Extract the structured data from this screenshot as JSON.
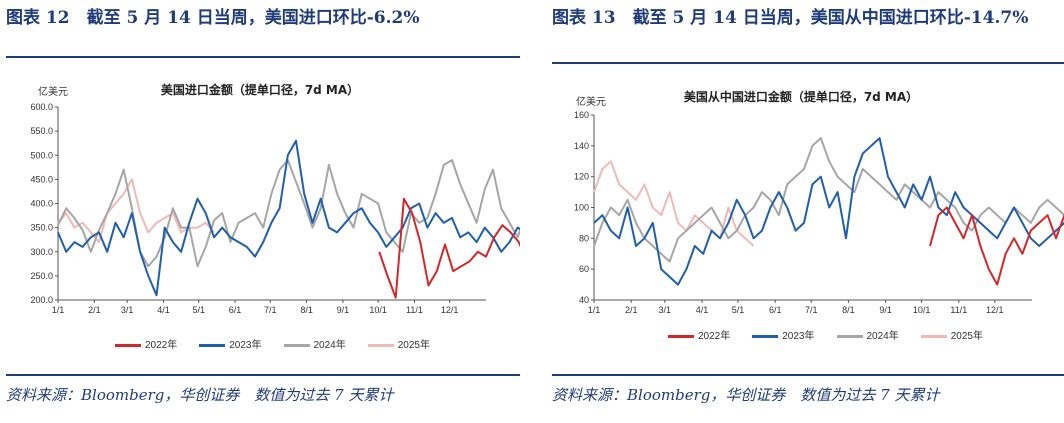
{
  "panels": [
    {
      "figure_title": "图表 12　截至 5 月 14 日当周，美国进口环比-6.2%",
      "source": "资料来源：Bloomberg，华创证券　数值为过去 7 天累计",
      "chart_data": {
        "type": "line",
        "title": "美国进口金额（提单口径，7d MA）",
        "ylabel": "亿美元",
        "ylim": [
          200,
          600
        ],
        "y_ticks": [
          "200.0",
          "250.0",
          "300.0",
          "350.0",
          "400.0",
          "450.0",
          "500.0",
          "550.0",
          "600.0"
        ],
        "x_ticks": [
          "1/1",
          "2/1",
          "3/1",
          "4/1",
          "5/1",
          "6/1",
          "7/1",
          "8/1",
          "9/1",
          "10/1",
          "11/1",
          "12/1"
        ],
        "grid": false,
        "legend_position": "bottom",
        "series": [
          {
            "name": "2022年",
            "color": "#d62728",
            "start_day": 274,
            "step": 7,
            "values": [
              300,
              250,
              205,
              410,
              380,
              320,
              230,
              260,
              315,
              260,
              270,
              280,
              300,
              290,
              330,
              355,
              340,
              320,
              280,
              260,
              300,
              240,
              260,
              300,
              290,
              250,
              300,
              235,
              300
            ]
          },
          {
            "name": "2023年",
            "color": "#1f5fae",
            "start_day": 0,
            "step": 7,
            "values": [
              340,
              300,
              320,
              310,
              330,
              340,
              300,
              360,
              330,
              380,
              300,
              250,
              210,
              350,
              320,
              300,
              360,
              410,
              380,
              330,
              350,
              330,
              320,
              310,
              290,
              320,
              360,
              390,
              500,
              530,
              420,
              360,
              410,
              350,
              340,
              360,
              380,
              390,
              360,
              340,
              310,
              330,
              350,
              390,
              400,
              350,
              380,
              360,
              370,
              330,
              340,
              320,
              350,
              330,
              300,
              320,
              350,
              340,
              310,
              330,
              360,
              350,
              330,
              350,
              370,
              340,
              350
            ]
          },
          {
            "name": "2024年",
            "color": "#a6a6a6",
            "start_day": 0,
            "step": 7,
            "values": [
              355,
              390,
              370,
              345,
              300,
              345,
              380,
              420,
              470,
              390,
              300,
              270,
              290,
              330,
              390,
              350,
              350,
              270,
              310,
              365,
              380,
              320,
              360,
              370,
              380,
              350,
              420,
              470,
              490,
              445,
              400,
              350,
              390,
              480,
              420,
              380,
              350,
              420,
              410,
              400,
              340,
              320,
              300,
              380,
              360,
              370,
              420,
              480,
              490,
              440,
              400,
              360,
              430,
              470,
              390,
              360,
              330,
              380,
              390,
              370,
              340,
              310,
              330,
              360,
              320,
              300,
              340
            ]
          },
          {
            "name": "2025年",
            "color": "#f2b8b8",
            "start_day": 0,
            "step": 7,
            "values": [
              360,
              380,
              350,
              360,
              340,
              320,
              380,
              400,
              420,
              450,
              380,
              340,
              360,
              370,
              380,
              340,
              350,
              350,
              360,
              340
            ]
          }
        ]
      }
    },
    {
      "figure_title": "图表 13　截至 5 月 14 日当周，美国从中国进口环比-14.7%",
      "source": "资料来源：Bloomberg，华创证券　数值为过去 7 天累计",
      "chart_data": {
        "type": "line",
        "title": "美国从中国进口金额（提单口径，7d MA）",
        "ylabel": "亿美元",
        "ylim": [
          40,
          160
        ],
        "y_ticks": [
          "40",
          "60",
          "80",
          "100",
          "120",
          "140",
          "160"
        ],
        "x_ticks": [
          "1/1",
          "2/1",
          "3/1",
          "4/1",
          "5/1",
          "6/1",
          "7/1",
          "8/1",
          "9/1",
          "10/1",
          "11/1",
          "12/1"
        ],
        "grid": false,
        "legend_position": "bottom",
        "series": [
          {
            "name": "2022年",
            "color": "#d62728",
            "start_day": 280,
            "step": 7,
            "values": [
              75,
              95,
              100,
              90,
              80,
              95,
              75,
              60,
              50,
              70,
              80,
              70,
              85,
              90,
              95,
              80,
              95,
              90,
              85,
              80,
              60,
              70,
              80
            ]
          },
          {
            "name": "2023年",
            "color": "#1f5fae",
            "start_day": 0,
            "step": 7,
            "values": [
              90,
              95,
              85,
              80,
              100,
              75,
              80,
              90,
              60,
              55,
              50,
              60,
              75,
              70,
              85,
              80,
              90,
              105,
              95,
              80,
              85,
              100,
              110,
              100,
              85,
              90,
              115,
              120,
              100,
              110,
              80,
              120,
              135,
              140,
              145,
              120,
              110,
              100,
              115,
              105,
              120,
              100,
              95,
              110,
              100,
              95,
              90,
              85,
              80,
              90,
              100,
              90,
              80,
              75,
              80,
              85,
              90,
              95,
              85,
              80,
              85,
              75,
              80,
              85,
              80,
              75,
              80
            ]
          },
          {
            "name": "2024年",
            "color": "#a6a6a6",
            "start_day": 0,
            "step": 7,
            "values": [
              75,
              90,
              100,
              95,
              105,
              90,
              80,
              75,
              70,
              65,
              80,
              85,
              90,
              95,
              100,
              90,
              80,
              85,
              95,
              100,
              110,
              105,
              95,
              115,
              120,
              125,
              140,
              145,
              130,
              120,
              115,
              110,
              125,
              120,
              115,
              110,
              105,
              115,
              110,
              105,
              100,
              110,
              105,
              100,
              90,
              85,
              95,
              100,
              95,
              90,
              100,
              95,
              90,
              100,
              105,
              100,
              95,
              100,
              105,
              100,
              95,
              105,
              110,
              100,
              95,
              105,
              110
            ]
          },
          {
            "name": "2025年",
            "color": "#f2b8b8",
            "start_day": 0,
            "step": 7,
            "values": [
              110,
              125,
              130,
              115,
              110,
              105,
              115,
              100,
              95,
              110,
              90,
              85,
              95,
              90,
              85,
              80,
              100,
              85,
              80,
              75
            ]
          }
        ]
      }
    }
  ]
}
